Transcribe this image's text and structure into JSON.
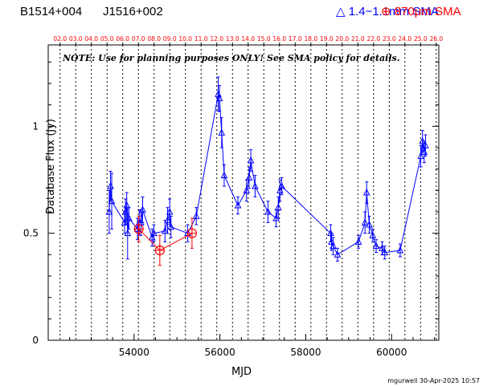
{
  "header": {
    "source_name": "B1514+004",
    "alt_name": "J1516+002",
    "legend_blue": "1.4−1.1mm SMA",
    "legend_red": "870μm SMA"
  },
  "note": "NOTE: Use for planning purposes ONLY! See SMA policy for details.",
  "footer": "mgurwell 30-Apr-2025 10:57",
  "colors": {
    "blue": "#0000ff",
    "red": "#ff0000",
    "black": "#000000"
  },
  "chart_data": {
    "type": "scatter",
    "xlabel": "MJD",
    "ylabel": "Database Flux (Jy)",
    "xlim": [
      52000,
      61100
    ],
    "ylim": [
      0,
      1.38
    ],
    "x_ticks": [
      54000,
      56000,
      58000,
      60000
    ],
    "y_ticks": [
      0,
      0.5,
      1
    ],
    "y_tick_labels": [
      "0",
      "0.5",
      "1"
    ],
    "top_axis": {
      "labels": [
        "02.0",
        "03.0",
        "04.0",
        "05.0",
        "06.0",
        "07.0",
        "08.0",
        "09.0",
        "10.0",
        "11.0",
        "12.0",
        "13.0",
        "14.0",
        "15.0",
        "16.0",
        "17.0",
        "18.0",
        "19.0",
        "20.0",
        "21.0",
        "22.0",
        "23.0",
        "24.0",
        "25.0",
        "26.0"
      ],
      "mjd": [
        52276,
        52641,
        53006,
        53371,
        53736,
        54101,
        54466,
        54832,
        55197,
        55562,
        55927,
        56293,
        56658,
        57023,
        57388,
        57754,
        58119,
        58484,
        58849,
        59215,
        59580,
        59945,
        60310,
        60676,
        61041
      ]
    },
    "series": [
      {
        "name": "1.4−1.1mm SMA",
        "color": "#0000ff",
        "marker": "triangle",
        "points": [
          {
            "x": 53420,
            "y": 0.6,
            "err": 0.1
          },
          {
            "x": 53450,
            "y": 0.72,
            "err": 0.07
          },
          {
            "x": 53480,
            "y": 0.65,
            "err": 0.13
          },
          {
            "x": 53780,
            "y": 0.55,
            "err": 0.05
          },
          {
            "x": 53800,
            "y": 0.6,
            "err": 0.06
          },
          {
            "x": 53830,
            "y": 0.63,
            "err": 0.06
          },
          {
            "x": 53850,
            "y": 0.5,
            "err": 0.12
          },
          {
            "x": 53880,
            "y": 0.57,
            "err": 0.05
          },
          {
            "x": 54080,
            "y": 0.52,
            "err": 0.05
          },
          {
            "x": 54120,
            "y": 0.55,
            "err": 0.06
          },
          {
            "x": 54160,
            "y": 0.55,
            "err": 0.06
          },
          {
            "x": 54200,
            "y": 0.61,
            "err": 0.06
          },
          {
            "x": 54420,
            "y": 0.48,
            "err": 0.04
          },
          {
            "x": 54460,
            "y": 0.5,
            "err": 0.04
          },
          {
            "x": 54720,
            "y": 0.51,
            "err": 0.05
          },
          {
            "x": 54780,
            "y": 0.56,
            "err": 0.06
          },
          {
            "x": 54830,
            "y": 0.6,
            "err": 0.06
          },
          {
            "x": 54860,
            "y": 0.53,
            "err": 0.05
          },
          {
            "x": 55250,
            "y": 0.5,
            "err": 0.04
          },
          {
            "x": 55450,
            "y": 0.58,
            "err": 0.04
          },
          {
            "x": 55960,
            "y": 1.15,
            "err": 0.08
          },
          {
            "x": 55990,
            "y": 1.13,
            "err": 0.06
          },
          {
            "x": 56040,
            "y": 0.97,
            "err": 0.07
          },
          {
            "x": 56100,
            "y": 0.77,
            "err": 0.05
          },
          {
            "x": 56420,
            "y": 0.63,
            "err": 0.04
          },
          {
            "x": 56620,
            "y": 0.7,
            "err": 0.05
          },
          {
            "x": 56680,
            "y": 0.76,
            "err": 0.05
          },
          {
            "x": 56720,
            "y": 0.84,
            "err": 0.05
          },
          {
            "x": 56820,
            "y": 0.72,
            "err": 0.05
          },
          {
            "x": 57120,
            "y": 0.6,
            "err": 0.05
          },
          {
            "x": 57310,
            "y": 0.57,
            "err": 0.04
          },
          {
            "x": 57360,
            "y": 0.62,
            "err": 0.05
          },
          {
            "x": 57400,
            "y": 0.7,
            "err": 0.05
          },
          {
            "x": 57440,
            "y": 0.72,
            "err": 0.04
          },
          {
            "x": 58580,
            "y": 0.5,
            "err": 0.04
          },
          {
            "x": 58600,
            "y": 0.46,
            "err": 0.04
          },
          {
            "x": 58640,
            "y": 0.44,
            "err": 0.04
          },
          {
            "x": 58740,
            "y": 0.4,
            "err": 0.03
          },
          {
            "x": 59230,
            "y": 0.46,
            "err": 0.03
          },
          {
            "x": 59380,
            "y": 0.55,
            "err": 0.05
          },
          {
            "x": 59420,
            "y": 0.69,
            "err": 0.05
          },
          {
            "x": 59480,
            "y": 0.54,
            "err": 0.04
          },
          {
            "x": 59560,
            "y": 0.49,
            "err": 0.03
          },
          {
            "x": 59640,
            "y": 0.44,
            "err": 0.03
          },
          {
            "x": 59780,
            "y": 0.43,
            "err": 0.03
          },
          {
            "x": 59840,
            "y": 0.41,
            "err": 0.03
          },
          {
            "x": 60200,
            "y": 0.42,
            "err": 0.03
          },
          {
            "x": 60680,
            "y": 0.86,
            "err": 0.05
          },
          {
            "x": 60720,
            "y": 0.93,
            "err": 0.05
          },
          {
            "x": 60760,
            "y": 0.88,
            "err": 0.05
          },
          {
            "x": 60790,
            "y": 0.91,
            "err": 0.05
          }
        ]
      },
      {
        "name": "870μm SMA",
        "color": "#ff0000",
        "marker": "circle-plus",
        "points": [
          {
            "x": 54110,
            "y": 0.52,
            "err": 0.06
          },
          {
            "x": 54600,
            "y": 0.42,
            "err": 0.07
          },
          {
            "x": 55350,
            "y": 0.5,
            "err": 0.07
          }
        ]
      }
    ]
  }
}
